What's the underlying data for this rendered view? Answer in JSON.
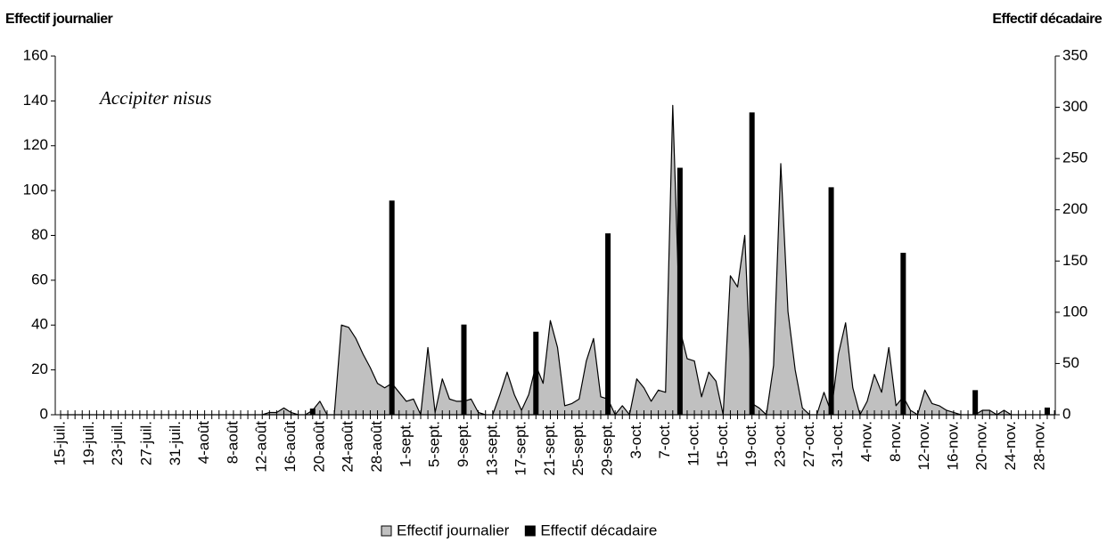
{
  "chart_data": {
    "type": "area-bar",
    "y_label": "Effectif journalier",
    "y2_label": "Effectif décadaire",
    "annotation": "Accipiter nisus",
    "categories": [
      "15-juil.",
      null,
      null,
      null,
      "19-juil.",
      null,
      null,
      null,
      "23-juil.",
      null,
      null,
      null,
      "27-juil.",
      null,
      null,
      null,
      "31-juil.",
      null,
      null,
      null,
      "4-août",
      null,
      null,
      null,
      "8-août",
      null,
      null,
      null,
      "12-août",
      null,
      null,
      null,
      "16-août",
      null,
      null,
      null,
      "20-août",
      null,
      null,
      null,
      "24-août",
      null,
      null,
      null,
      "28-août",
      null,
      null,
      null,
      "1-sept.",
      null,
      null,
      null,
      "5-sept.",
      null,
      null,
      null,
      "9-sept.",
      null,
      null,
      null,
      "13-sept.",
      null,
      null,
      null,
      "17-sept.",
      null,
      null,
      null,
      "21-sept.",
      null,
      null,
      null,
      "25-sept.",
      null,
      null,
      null,
      "29-sept.",
      null,
      null,
      null,
      "3-oct.",
      null,
      null,
      null,
      "7-oct.",
      null,
      null,
      null,
      "11-oct.",
      null,
      null,
      null,
      "15-oct.",
      null,
      null,
      null,
      "19-oct.",
      null,
      null,
      null,
      "23-oct.",
      null,
      null,
      null,
      "27-oct.",
      null,
      null,
      null,
      "31-oct.",
      null,
      null,
      null,
      "4-nov.",
      null,
      null,
      null,
      "8-nov.",
      null,
      null,
      null,
      "12-nov.",
      null,
      null,
      null,
      "16-nov.",
      null,
      null,
      null,
      "20-nov.",
      null,
      null,
      null,
      "24-nov.",
      null,
      null,
      null,
      "28-nov.",
      null,
      null
    ],
    "series": [
      {
        "name": "Effectif journalier",
        "color": "#c0c0c0",
        "values": [
          0,
          0,
          0,
          0,
          0,
          0,
          0,
          0,
          0,
          0,
          0,
          0,
          0,
          0,
          0,
          0,
          0,
          0,
          0,
          0,
          0,
          0,
          0,
          0,
          0,
          0,
          0,
          0,
          0,
          1,
          1,
          3,
          1,
          0,
          0,
          2,
          6,
          0,
          0,
          40,
          39,
          34,
          27,
          21,
          14,
          12,
          14,
          10,
          6,
          7,
          0,
          30,
          1,
          16,
          7,
          6,
          6,
          7,
          1,
          0,
          0,
          9,
          19,
          9,
          2,
          9,
          22,
          14,
          42,
          30,
          4,
          5,
          7,
          24,
          34,
          8,
          7,
          0,
          4,
          0,
          16,
          12,
          6,
          11,
          10,
          138,
          38,
          25,
          24,
          8,
          19,
          15,
          0,
          62,
          57,
          80,
          5,
          3,
          0,
          22,
          112,
          46,
          20,
          3,
          0,
          0,
          10,
          1,
          27,
          41,
          12,
          0,
          6,
          18,
          10,
          30,
          4,
          8,
          2,
          0,
          11,
          5,
          4,
          2,
          1,
          0,
          0,
          0,
          2,
          2,
          0,
          2,
          0,
          0,
          0,
          0,
          0,
          0,
          0
        ]
      },
      {
        "name": "Effectif décadaire",
        "color": "#000000",
        "axis": "y2",
        "values": [
          null,
          null,
          null,
          null,
          null,
          null,
          null,
          null,
          null,
          null,
          null,
          null,
          null,
          null,
          null,
          null,
          null,
          null,
          null,
          null,
          null,
          null,
          null,
          null,
          null,
          null,
          null,
          null,
          null,
          null,
          null,
          null,
          null,
          null,
          null,
          6,
          null,
          null,
          null,
          null,
          null,
          null,
          null,
          null,
          null,
          null,
          209,
          null,
          null,
          null,
          null,
          null,
          null,
          null,
          null,
          null,
          88,
          null,
          null,
          null,
          null,
          null,
          null,
          null,
          null,
          null,
          81,
          null,
          null,
          null,
          null,
          null,
          null,
          null,
          null,
          null,
          177,
          null,
          null,
          null,
          null,
          null,
          null,
          null,
          null,
          null,
          241,
          null,
          null,
          null,
          null,
          null,
          null,
          null,
          null,
          null,
          295,
          null,
          null,
          null,
          null,
          null,
          null,
          null,
          null,
          null,
          null,
          222,
          null,
          null,
          null,
          null,
          null,
          null,
          null,
          null,
          null,
          158,
          null,
          null,
          null,
          null,
          null,
          null,
          null,
          null,
          null,
          24,
          null,
          null,
          null,
          null,
          null,
          null,
          null,
          null,
          null,
          7,
          null
        ]
      }
    ],
    "ylim": [
      0,
      160
    ],
    "yticks": [
      0,
      20,
      40,
      60,
      80,
      100,
      120,
      140,
      160
    ],
    "y2lim": [
      0,
      350
    ],
    "y2ticks": [
      0,
      50,
      100,
      150,
      200,
      250,
      300,
      350
    ],
    "legend": "bottom"
  }
}
